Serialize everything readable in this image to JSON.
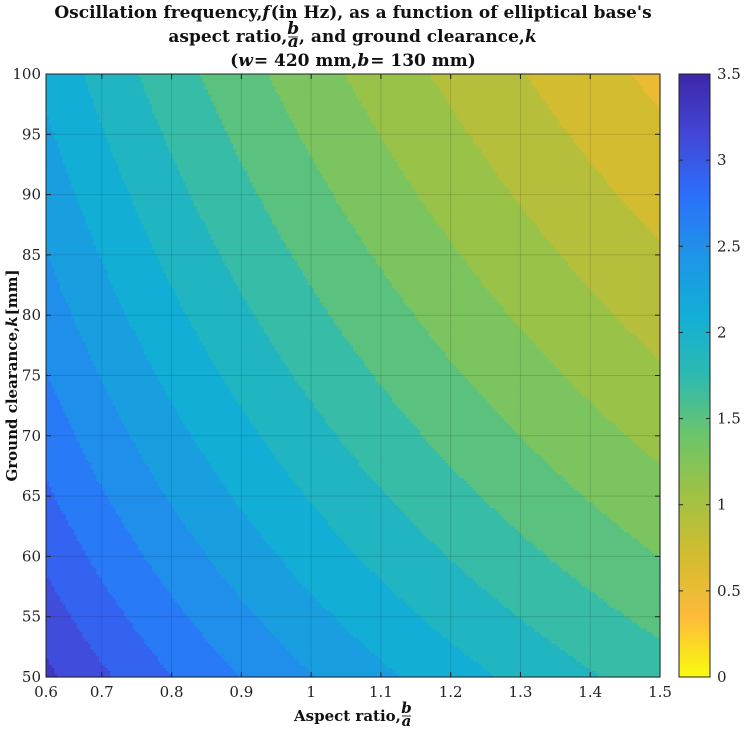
{
  "chart_data": {
    "type": "contour",
    "title_lines": [
      [
        "Oscillation frequency, ",
        {
          "it": "f"
        },
        " (in Hz), as a function of elliptical base's"
      ],
      [
        "aspect ratio, ",
        {
          "frac": [
            "b",
            "a"
          ]
        },
        ", and ground clearance, ",
        {
          "it": "k"
        }
      ],
      [
        "(",
        {
          "it": "w"
        },
        " = 420 mm, ",
        {
          "it": "b"
        },
        " = 130 mm)"
      ]
    ],
    "xlabel": [
      "Aspect ratio, ",
      {
        "frac": [
          "b",
          "a"
        ]
      }
    ],
    "ylabel": [
      "Ground clearance, ",
      {
        "it": "k"
      },
      " [mm]"
    ],
    "xlim": [
      0.62,
      1.5
    ],
    "ylim": [
      50,
      100
    ],
    "x_ticks": [
      0.6,
      0.7,
      0.8,
      0.9,
      1,
      1.1,
      1.2,
      1.3,
      1.4,
      1.5
    ],
    "x_tick_labels": [
      "0.6",
      "0.7",
      "0.8",
      "0.9",
      "1",
      "1.1",
      "1.2",
      "1.3",
      "1.4",
      "1.5"
    ],
    "y_ticks": [
      50,
      55,
      60,
      65,
      70,
      75,
      80,
      85,
      90,
      95,
      100
    ],
    "y_tick_labels": [
      "50",
      "55",
      "60",
      "65",
      "70",
      "75",
      "80",
      "85",
      "90",
      "95",
      "100"
    ],
    "colorbar": {
      "colormap": "parula-reversed",
      "range": [
        0,
        3.5
      ],
      "ticks": [
        0,
        0.5,
        1,
        1.5,
        2,
        2.5,
        3,
        3.5
      ],
      "tick_labels": [
        "0",
        "0.5",
        "1",
        "1.5",
        "2",
        "2.5",
        "3",
        "3.5"
      ]
    },
    "contour_levels": [
      0.6,
      0.8,
      1.0,
      1.2,
      1.4,
      1.6,
      1.8,
      2.0,
      2.2,
      2.4,
      2.6,
      2.8,
      3.0,
      3.2
    ],
    "corner_values": {
      "x0.62_y50": 3.25,
      "x1.5_y50": 1.7,
      "x0.62_y100": 2.15,
      "x1.5_y100": 0.55
    },
    "grid": true,
    "colors": {
      "parula_stops": [
        "#F9FB0E",
        "#FDBB3A",
        "#D3BC2F",
        "#A0C244",
        "#6CC56A",
        "#2DBAB1",
        "#12AED6",
        "#1E94E8",
        "#2C6FFB",
        "#4346D6",
        "#3E26A8"
      ]
    }
  }
}
